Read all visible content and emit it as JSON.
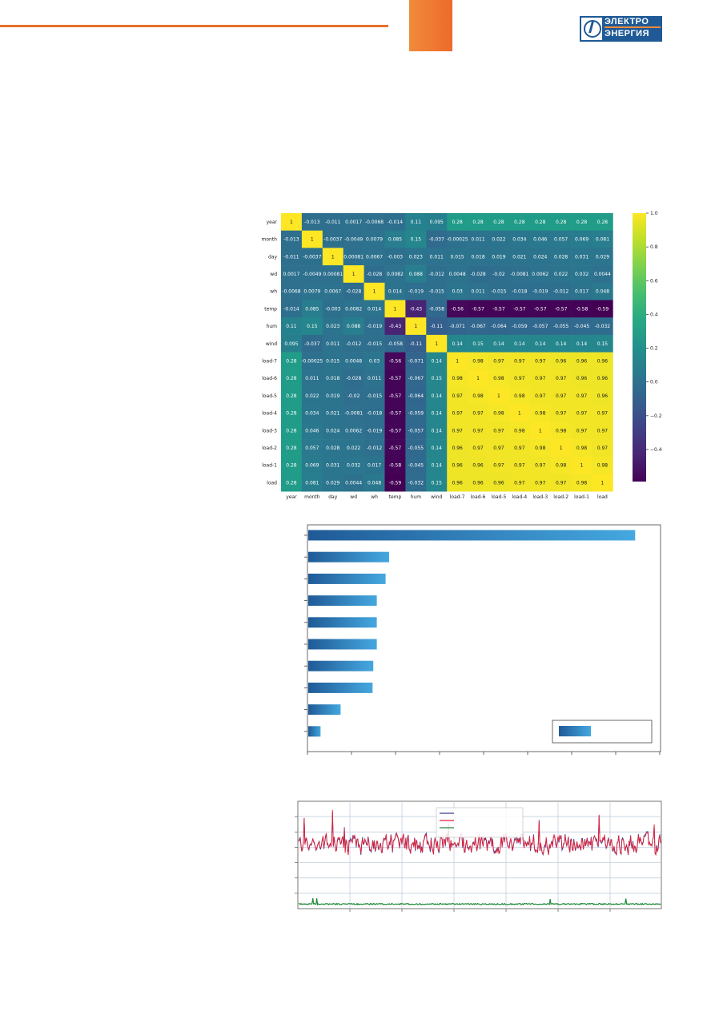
{
  "header": {
    "accent_color": "#e8702a",
    "logo": {
      "line1": "ЭЛЕКТРО",
      "line2": "ЭНЕРГИЯ",
      "color": "#1f5a96"
    }
  },
  "chart_data": [
    {
      "type": "heatmap",
      "labels": [
        "year",
        "month",
        "day",
        "wd",
        "wh",
        "temp",
        "hum",
        "wind",
        "load-7",
        "load-6",
        "load-5",
        "load-4",
        "load-3",
        "load-2",
        "load-1",
        "load"
      ],
      "matrix": [
        [
          "1",
          "-0.013",
          "-0.011",
          "0.0017",
          "-0.0068",
          "-0.014",
          "0.11",
          "0.095",
          "0.28",
          "0.28",
          "0.28",
          "0.28",
          "0.28",
          "0.28",
          "0.28",
          "0.28"
        ],
        [
          "-0.013",
          "1",
          "-0.0037",
          "-0.0049",
          "0.0079",
          "0.085",
          "0.15",
          "-0.037",
          "-0.00025",
          "0.011",
          "0.022",
          "0.034",
          "0.046",
          "0.057",
          "0.069",
          "0.081"
        ],
        [
          "-0.011",
          "-0.0037",
          "1",
          "0.00081",
          "0.0067",
          "-0.003",
          "0.023",
          "0.011",
          "0.015",
          "0.018",
          "0.019",
          "0.021",
          "0.024",
          "0.028",
          "0.031",
          "0.029"
        ],
        [
          "0.0017",
          "-0.0049",
          "0.00081",
          "1",
          "-0.028",
          "0.0082",
          "0.088",
          "-0.012",
          "0.0048",
          "-0.028",
          "-0.02",
          "-0.0081",
          "0.0062",
          "0.022",
          "0.032",
          "0.0044"
        ],
        [
          "-0.0068",
          "0.0079",
          "0.0067",
          "-0.028",
          "1",
          "0.014",
          "-0.019",
          "-0.015",
          "0.03",
          "0.011",
          "-0.015",
          "-0.018",
          "-0.019",
          "-0.012",
          "0.017",
          "0.048"
        ],
        [
          "-0.014",
          "0.085",
          "-0.003",
          "0.0082",
          "0.014",
          "1",
          "-0.43",
          "-0.058",
          "-0.56",
          "-0.57",
          "-0.57",
          "-0.57",
          "-0.57",
          "-0.57",
          "-0.58",
          "-0.59"
        ],
        [
          "0.11",
          "0.15",
          "0.023",
          "0.088",
          "-0.019",
          "-0.43",
          "1",
          "-0.11",
          "-0.071",
          "-0.067",
          "-0.064",
          "-0.059",
          "-0.057",
          "-0.055",
          "-0.045",
          "-0.032"
        ],
        [
          "0.095",
          "-0.037",
          "0.011",
          "-0.012",
          "-0.015",
          "-0.058",
          "-0.11",
          "1",
          "0.14",
          "0.15",
          "0.14",
          "0.14",
          "0.14",
          "0.14",
          "0.14",
          "0.15"
        ],
        [
          "0.28",
          "-0.00025",
          "0.015",
          "0.0048",
          "0.03",
          "-0.56",
          "-0.071",
          "0.14",
          "1",
          "0.98",
          "0.97",
          "0.97",
          "0.97",
          "0.96",
          "0.96",
          "0.96"
        ],
        [
          "0.28",
          "0.011",
          "0.018",
          "-0.028",
          "0.011",
          "-0.57",
          "-0.067",
          "0.15",
          "0.98",
          "1",
          "0.98",
          "0.97",
          "0.97",
          "0.97",
          "0.96",
          "0.96"
        ],
        [
          "0.28",
          "0.022",
          "0.019",
          "-0.02",
          "-0.015",
          "-0.57",
          "-0.064",
          "0.14",
          "0.97",
          "0.98",
          "1",
          "0.98",
          "0.97",
          "0.97",
          "0.97",
          "0.96"
        ],
        [
          "0.28",
          "0.034",
          "0.021",
          "-0.0081",
          "-0.018",
          "-0.57",
          "-0.059",
          "0.14",
          "0.97",
          "0.97",
          "0.98",
          "1",
          "0.98",
          "0.97",
          "0.97",
          "0.97"
        ],
        [
          "0.28",
          "0.046",
          "0.024",
          "0.0062",
          "-0.019",
          "-0.57",
          "-0.057",
          "0.14",
          "0.97",
          "0.97",
          "0.97",
          "0.98",
          "1",
          "0.98",
          "0.97",
          "0.97"
        ],
        [
          "0.28",
          "0.057",
          "0.028",
          "0.022",
          "-0.012",
          "-0.57",
          "-0.055",
          "0.14",
          "0.96",
          "0.97",
          "0.97",
          "0.97",
          "0.98",
          "1",
          "0.98",
          "0.97"
        ],
        [
          "0.28",
          "0.069",
          "0.031",
          "0.032",
          "0.017",
          "-0.58",
          "-0.045",
          "0.14",
          "0.96",
          "0.96",
          "0.97",
          "0.97",
          "0.97",
          "0.98",
          "1",
          "0.98"
        ],
        [
          "0.28",
          "0.081",
          "0.029",
          "0.0044",
          "0.048",
          "-0.59",
          "-0.032",
          "0.15",
          "0.96",
          "0.96",
          "0.96",
          "0.97",
          "0.97",
          "0.97",
          "0.98",
          "1"
        ]
      ],
      "colorbar": {
        "ticks": [
          "1.0",
          "0.8",
          "0.6",
          "0.4",
          "0.2",
          "0.0",
          "−0.2",
          "−0.4"
        ],
        "range": [
          -0.59,
          1.0
        ],
        "colormap": "viridis"
      }
    },
    {
      "type": "bar",
      "orientation": "horizontal",
      "values": [
        0.93,
        0.23,
        0.22,
        0.195,
        0.195,
        0.195,
        0.185,
        0.183,
        0.092,
        0.035
      ],
      "xlim": [
        0,
        1
      ],
      "color_start": "#1f5a96",
      "color_end": "#45a8e0",
      "legend": {
        "position": "lower-right"
      }
    },
    {
      "type": "line",
      "series": [
        {
          "color": "#3b3f8f"
        },
        {
          "color": "#e0203a"
        },
        {
          "color": "#1f8a3a"
        }
      ],
      "ylim": [
        0,
        7
      ],
      "red_level": 4.2,
      "red_amplitude": 0.9,
      "green_level": 0.3,
      "points": 460
    }
  ]
}
